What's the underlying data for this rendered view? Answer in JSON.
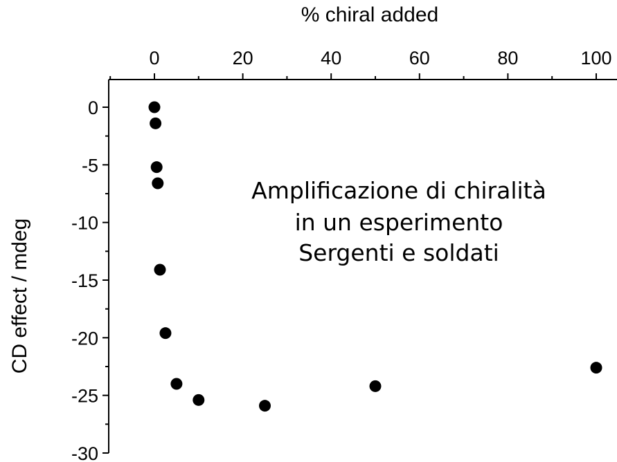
{
  "chart_data": {
    "type": "scatter",
    "title": "",
    "xlabel": "% chiral  added",
    "ylabel": "CD effect / mdeg",
    "x_axis_position": "top",
    "xlim": [
      -10,
      100
    ],
    "ylim": [
      -30,
      2.3
    ],
    "x_ticks": [
      0,
      20,
      40,
      60,
      80,
      100
    ],
    "x_tick_labels": [
      "0",
      "20",
      "40",
      "60",
      "80",
      "100"
    ],
    "y_ticks": [
      0,
      -5,
      -10,
      -15,
      -20,
      -25,
      -30
    ],
    "y_tick_labels": [
      "0",
      "-5",
      "-10",
      "-15",
      "-20",
      "-25",
      "-30"
    ],
    "grid": false,
    "legend": "none",
    "marker_color": "#000000",
    "series": [
      {
        "x": [
          0,
          0.25,
          0.5,
          0.75,
          1.25,
          2.5,
          5,
          10,
          25,
          50,
          100
        ],
        "y": [
          0,
          -1.4,
          -5.2,
          -6.6,
          -14.1,
          -19.6,
          -24.0,
          -25.4,
          -25.9,
          -24.2,
          -22.6
        ]
      }
    ],
    "annotation": [
      "Amplificazione di chiralità",
      "in un esperimento",
      "Sergenti e soldati"
    ]
  }
}
